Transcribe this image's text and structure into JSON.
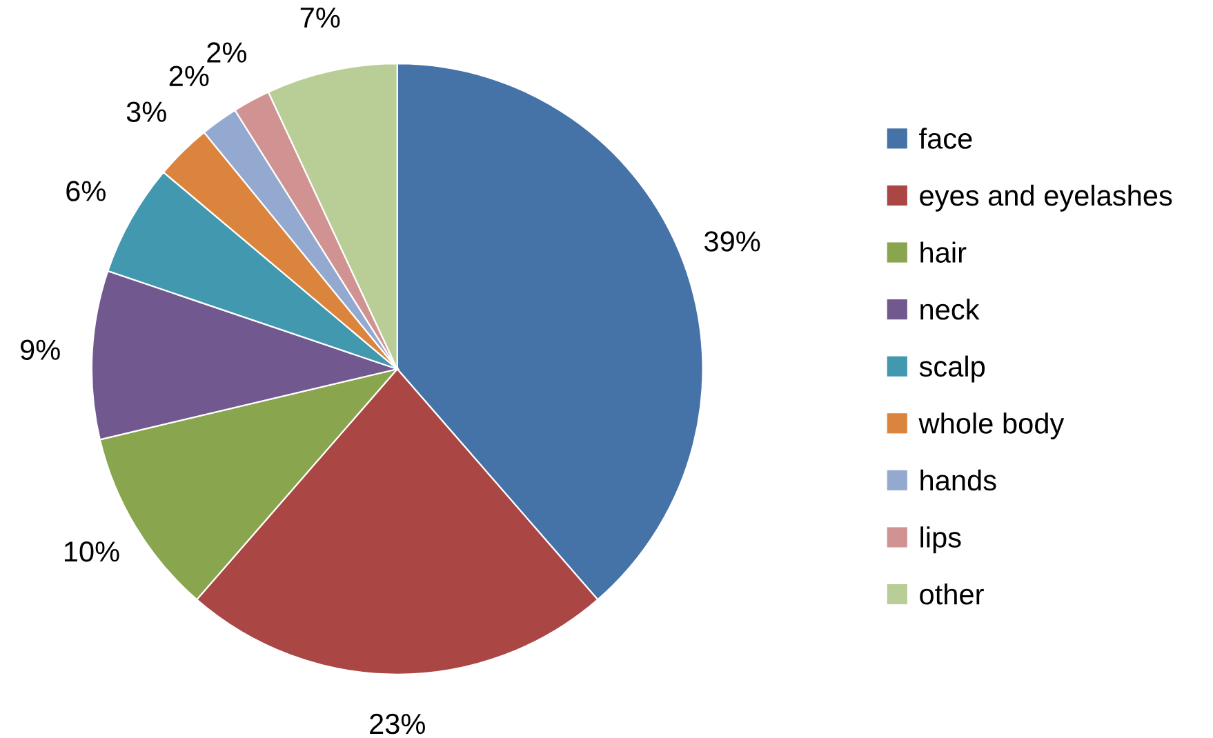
{
  "chart_data": {
    "type": "pie",
    "categories": [
      "face",
      "eyes and eyelashes",
      "hair",
      "neck",
      "scalp",
      "whole body",
      "hands",
      "lips",
      "other"
    ],
    "values": [
      39,
      23,
      10,
      9,
      6,
      3,
      2,
      2,
      7
    ],
    "colors": [
      "#4572a7",
      "#aa4643",
      "#89a54e",
      "#71588f",
      "#4198af",
      "#db843d",
      "#93a9cf",
      "#d19392",
      "#b9cd96"
    ],
    "value_labels": [
      "39%",
      "23%",
      "10%",
      "9%",
      "6%",
      "3%",
      "2%",
      "2%",
      "7%"
    ],
    "legend": "right"
  }
}
